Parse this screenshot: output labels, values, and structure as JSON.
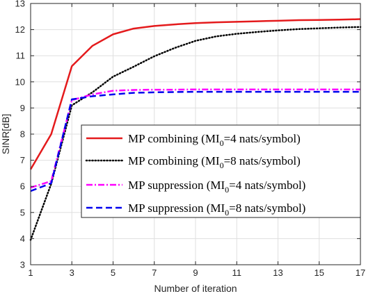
{
  "chart_data": {
    "type": "line",
    "title": "",
    "xlabel": "Number of iteration",
    "ylabel": "SINR[dB]",
    "xlim": [
      1,
      17
    ],
    "ylim": [
      3,
      13
    ],
    "xticks": [
      1,
      3,
      5,
      7,
      9,
      11,
      13,
      15,
      17
    ],
    "yticks": [
      3,
      4,
      5,
      6,
      7,
      8,
      9,
      10,
      11,
      12,
      13
    ],
    "grid": true,
    "legend_position": "center-right",
    "x": [
      1,
      2,
      3,
      4,
      5,
      6,
      7,
      8,
      9,
      10,
      11,
      12,
      13,
      14,
      15,
      16,
      17
    ],
    "series": [
      {
        "name": "MP combining (MI",
        "name_sub": "0",
        "name_suffix": "=4 nats/symbol)",
        "color": "#e41a1c",
        "dash": "solid",
        "values": [
          6.65,
          8.0,
          10.6,
          11.38,
          11.82,
          12.04,
          12.14,
          12.2,
          12.25,
          12.28,
          12.3,
          12.32,
          12.34,
          12.36,
          12.37,
          12.38,
          12.4
        ]
      },
      {
        "name": "MP combining (MI",
        "name_sub": "0",
        "name_suffix": "=8 nats/symbol)",
        "color": "#000000",
        "dash": "dotted",
        "values": [
          3.95,
          6.1,
          9.1,
          9.6,
          10.2,
          10.58,
          10.98,
          11.3,
          11.57,
          11.74,
          11.84,
          11.91,
          11.97,
          12.02,
          12.05,
          12.08,
          12.1
        ]
      },
      {
        "name": "MP suppression (MI",
        "name_sub": "0",
        "name_suffix": "=4 nats/symbol)",
        "color": "#ff00ff",
        "dash": "dashdot",
        "values": [
          5.95,
          6.2,
          9.3,
          9.52,
          9.66,
          9.69,
          9.7,
          9.7,
          9.71,
          9.71,
          9.71,
          9.71,
          9.71,
          9.71,
          9.71,
          9.71,
          9.71
        ]
      },
      {
        "name": "MP suppression (MI",
        "name_sub": "0",
        "name_suffix": "=8 nats/symbol)",
        "color": "#0000ee",
        "dash": "dashed",
        "values": [
          5.82,
          6.12,
          9.33,
          9.45,
          9.52,
          9.58,
          9.6,
          9.61,
          9.62,
          9.62,
          9.62,
          9.62,
          9.62,
          9.62,
          9.62,
          9.62,
          9.62
        ]
      }
    ]
  }
}
